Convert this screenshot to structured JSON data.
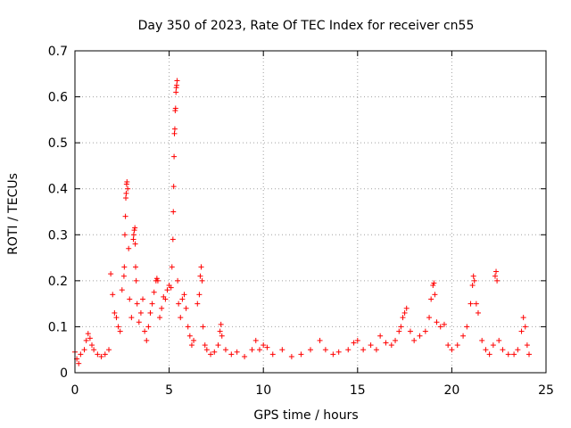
{
  "chart_data": {
    "type": "scatter",
    "title": "Day 350 of 2023, Rate Of TEC Index for receiver cn55",
    "xlabel": "GPS time / hours",
    "ylabel": "ROTI / TECUs",
    "xlim": [
      0,
      25
    ],
    "ylim": [
      0,
      0.7
    ],
    "x_ticks": [
      "0",
      "5",
      "10",
      "15",
      "20",
      "25"
    ],
    "y_ticks": [
      "0",
      "0.1",
      "0.2",
      "0.3",
      "0.4",
      "0.5",
      "0.6",
      "0.7"
    ],
    "x_tick_values": [
      0,
      5,
      10,
      15,
      20,
      25
    ],
    "y_tick_values": [
      0,
      0.1,
      0.2,
      0.3,
      0.4,
      0.5,
      0.6,
      0.7
    ],
    "grid": true,
    "marker": "+",
    "color": "#ff0000",
    "series": [
      {
        "points": [
          [
            0.0,
            0.045
          ],
          [
            0.1,
            0.03
          ],
          [
            0.2,
            0.02
          ],
          [
            0.3,
            0.04
          ],
          [
            0.5,
            0.05
          ],
          [
            0.6,
            0.07
          ],
          [
            0.7,
            0.085
          ],
          [
            0.8,
            0.075
          ],
          [
            0.9,
            0.06
          ],
          [
            1.0,
            0.05
          ],
          [
            1.2,
            0.04
          ],
          [
            1.4,
            0.035
          ],
          [
            1.6,
            0.04
          ],
          [
            1.8,
            0.05
          ],
          [
            1.9,
            0.215
          ],
          [
            2.0,
            0.17
          ],
          [
            2.1,
            0.13
          ],
          [
            2.2,
            0.12
          ],
          [
            2.3,
            0.1
          ],
          [
            2.4,
            0.09
          ],
          [
            2.5,
            0.18
          ],
          [
            2.6,
            0.21
          ],
          [
            2.62,
            0.23
          ],
          [
            2.65,
            0.3
          ],
          [
            2.68,
            0.34
          ],
          [
            2.7,
            0.38
          ],
          [
            2.72,
            0.39
          ],
          [
            2.74,
            0.41
          ],
          [
            2.76,
            0.415
          ],
          [
            2.8,
            0.4
          ],
          [
            2.85,
            0.27
          ],
          [
            2.9,
            0.16
          ],
          [
            3.0,
            0.12
          ],
          [
            3.1,
            0.29
          ],
          [
            3.12,
            0.3
          ],
          [
            3.15,
            0.31
          ],
          [
            3.18,
            0.315
          ],
          [
            3.2,
            0.28
          ],
          [
            3.22,
            0.23
          ],
          [
            3.25,
            0.2
          ],
          [
            3.3,
            0.15
          ],
          [
            3.4,
            0.11
          ],
          [
            3.5,
            0.13
          ],
          [
            3.6,
            0.16
          ],
          [
            3.7,
            0.09
          ],
          [
            3.8,
            0.07
          ],
          [
            3.9,
            0.1
          ],
          [
            4.0,
            0.13
          ],
          [
            4.1,
            0.15
          ],
          [
            4.2,
            0.175
          ],
          [
            4.3,
            0.2
          ],
          [
            4.35,
            0.205
          ],
          [
            4.4,
            0.2
          ],
          [
            4.5,
            0.12
          ],
          [
            4.6,
            0.14
          ],
          [
            4.7,
            0.165
          ],
          [
            4.8,
            0.16
          ],
          [
            4.9,
            0.18
          ],
          [
            5.0,
            0.19
          ],
          [
            5.1,
            0.185
          ],
          [
            5.15,
            0.23
          ],
          [
            5.2,
            0.29
          ],
          [
            5.22,
            0.35
          ],
          [
            5.24,
            0.405
          ],
          [
            5.26,
            0.47
          ],
          [
            5.28,
            0.52
          ],
          [
            5.3,
            0.53
          ],
          [
            5.32,
            0.57
          ],
          [
            5.34,
            0.575
          ],
          [
            5.36,
            0.61
          ],
          [
            5.38,
            0.62
          ],
          [
            5.4,
            0.625
          ],
          [
            5.42,
            0.635
          ],
          [
            5.45,
            0.2
          ],
          [
            5.5,
            0.15
          ],
          [
            5.6,
            0.12
          ],
          [
            5.7,
            0.16
          ],
          [
            5.8,
            0.17
          ],
          [
            5.9,
            0.14
          ],
          [
            6.0,
            0.1
          ],
          [
            6.1,
            0.08
          ],
          [
            6.2,
            0.06
          ],
          [
            6.3,
            0.07
          ],
          [
            6.5,
            0.15
          ],
          [
            6.6,
            0.17
          ],
          [
            6.65,
            0.21
          ],
          [
            6.7,
            0.23
          ],
          [
            6.75,
            0.2
          ],
          [
            6.8,
            0.1
          ],
          [
            6.9,
            0.06
          ],
          [
            7.0,
            0.05
          ],
          [
            7.2,
            0.04
          ],
          [
            7.4,
            0.045
          ],
          [
            7.6,
            0.06
          ],
          [
            7.7,
            0.09
          ],
          [
            7.75,
            0.105
          ],
          [
            7.8,
            0.08
          ],
          [
            8.0,
            0.05
          ],
          [
            8.3,
            0.04
          ],
          [
            8.6,
            0.045
          ],
          [
            9.0,
            0.035
          ],
          [
            9.4,
            0.05
          ],
          [
            9.6,
            0.07
          ],
          [
            9.8,
            0.05
          ],
          [
            10.0,
            0.06
          ],
          [
            10.2,
            0.055
          ],
          [
            10.5,
            0.04
          ],
          [
            11.0,
            0.05
          ],
          [
            11.5,
            0.035
          ],
          [
            12.0,
            0.04
          ],
          [
            12.5,
            0.05
          ],
          [
            13.0,
            0.07
          ],
          [
            13.3,
            0.05
          ],
          [
            13.7,
            0.04
          ],
          [
            14.0,
            0.045
          ],
          [
            14.5,
            0.05
          ],
          [
            14.8,
            0.065
          ],
          [
            15.0,
            0.07
          ],
          [
            15.3,
            0.05
          ],
          [
            15.7,
            0.06
          ],
          [
            16.0,
            0.05
          ],
          [
            16.2,
            0.08
          ],
          [
            16.5,
            0.065
          ],
          [
            16.8,
            0.06
          ],
          [
            17.0,
            0.07
          ],
          [
            17.2,
            0.09
          ],
          [
            17.3,
            0.1
          ],
          [
            17.4,
            0.12
          ],
          [
            17.5,
            0.13
          ],
          [
            17.6,
            0.14
          ],
          [
            17.8,
            0.09
          ],
          [
            18.0,
            0.07
          ],
          [
            18.3,
            0.08
          ],
          [
            18.6,
            0.09
          ],
          [
            18.8,
            0.12
          ],
          [
            18.9,
            0.16
          ],
          [
            19.0,
            0.19
          ],
          [
            19.05,
            0.195
          ],
          [
            19.1,
            0.17
          ],
          [
            19.2,
            0.11
          ],
          [
            19.4,
            0.1
          ],
          [
            19.6,
            0.105
          ],
          [
            19.8,
            0.06
          ],
          [
            20.0,
            0.05
          ],
          [
            20.3,
            0.06
          ],
          [
            20.6,
            0.08
          ],
          [
            20.8,
            0.1
          ],
          [
            21.0,
            0.15
          ],
          [
            21.1,
            0.19
          ],
          [
            21.15,
            0.21
          ],
          [
            21.2,
            0.2
          ],
          [
            21.3,
            0.15
          ],
          [
            21.4,
            0.13
          ],
          [
            21.6,
            0.07
          ],
          [
            21.8,
            0.05
          ],
          [
            22.0,
            0.04
          ],
          [
            22.2,
            0.06
          ],
          [
            22.3,
            0.21
          ],
          [
            22.35,
            0.22
          ],
          [
            22.4,
            0.2
          ],
          [
            22.5,
            0.07
          ],
          [
            22.7,
            0.05
          ],
          [
            23.0,
            0.04
          ],
          [
            23.3,
            0.04
          ],
          [
            23.5,
            0.05
          ],
          [
            23.7,
            0.09
          ],
          [
            23.8,
            0.12
          ],
          [
            23.9,
            0.1
          ],
          [
            24.0,
            0.06
          ],
          [
            24.1,
            0.04
          ]
        ]
      }
    ]
  }
}
